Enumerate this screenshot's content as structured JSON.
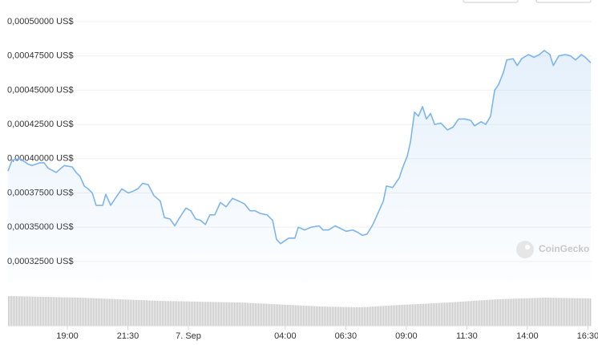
{
  "chart_data": {
    "type": "area",
    "brand": "CoinGecko",
    "color": "#7cb5ec",
    "grid": true,
    "xlim": [
      -7.45,
      16.62
    ],
    "xticks": [
      {
        "value": -5,
        "label": "19:00"
      },
      {
        "value": -2.5,
        "label": "21:30"
      },
      {
        "value": 0,
        "label": "7. Sep"
      },
      {
        "value": 4,
        "label": "04:00"
      },
      {
        "value": 6.5,
        "label": "06:30"
      },
      {
        "value": 9,
        "label": "09:00"
      },
      {
        "value": 11.5,
        "label": "11:30"
      },
      {
        "value": 14,
        "label": "14:00"
      },
      {
        "value": 16.5,
        "label": "16:30"
      }
    ],
    "ylim": [
      0.00031,
      0.0005
    ],
    "yticks": [
      {
        "value": 0.0005,
        "label": "0,00050000 US$"
      },
      {
        "value": 0.000475,
        "label": "0,00047500 US$"
      },
      {
        "value": 0.00045,
        "label": "0,00045000 US$"
      },
      {
        "value": 0.000425,
        "label": "0,00042500 US$"
      },
      {
        "value": 0.0004,
        "label": "0,00040000 US$"
      },
      {
        "value": 0.000375,
        "label": "0,00037500 US$"
      },
      {
        "value": 0.00035,
        "label": "0,00035000 US$"
      },
      {
        "value": 0.000325,
        "label": "0,00032500 US$"
      }
    ],
    "x": [
      -7.45,
      -7.28,
      -6.95,
      -6.62,
      -6.46,
      -6.13,
      -5.96,
      -5.79,
      -5.46,
      -5.13,
      -4.8,
      -4.64,
      -4.47,
      -4.3,
      -4.14,
      -3.97,
      -3.81,
      -3.54,
      -3.41,
      -3.21,
      -2.98,
      -2.75,
      -2.48,
      -2.32,
      -2.09,
      -1.89,
      -1.66,
      -1.42,
      -1.16,
      -0.99,
      -0.76,
      -0.56,
      -0.36,
      -0.1,
      0.1,
      0.3,
      0.5,
      0.7,
      0.89,
      1.09,
      1.32,
      1.56,
      1.82,
      2.09,
      2.32,
      2.55,
      2.75,
      2.98,
      3.25,
      3.48,
      3.64,
      3.81,
      3.97,
      4.14,
      4.4,
      4.54,
      4.8,
      5.07,
      5.4,
      5.56,
      5.79,
      6.06,
      6.29,
      6.52,
      6.79,
      7.02,
      7.19,
      7.38,
      7.62,
      7.85,
      8.05,
      8.18,
      8.44,
      8.71,
      8.84,
      9.04,
      9.17,
      9.34,
      9.5,
      9.67,
      9.83,
      10,
      10.17,
      10.43,
      10.7,
      10.93,
      11.16,
      11.42,
      11.66,
      11.82,
      12.09,
      12.28,
      12.48,
      12.65,
      12.81,
      13.01,
      13.15,
      13.41,
      13.58,
      13.77,
      14.04,
      14.27,
      14.5,
      14.7,
      14.93,
      15.07,
      15.3,
      15.56,
      15.79,
      15.99,
      16.23,
      16.39,
      16.62
    ],
    "values": [
      0.000391,
      0.000399,
      0.0004,
      0.000396,
      0.000395,
      0.000397,
      0.000397,
      0.000393,
      0.00039,
      0.000395,
      0.000394,
      0.00039,
      0.000387,
      0.00038,
      0.000378,
      0.000375,
      0.000366,
      0.000366,
      0.000374,
      0.000366,
      0.000372,
      0.000378,
      0.000375,
      0.000376,
      0.000378,
      0.000382,
      0.000381,
      0.000373,
      0.000369,
      0.000357,
      0.000356,
      0.000351,
      0.000357,
      0.000364,
      0.000362,
      0.000356,
      0.000355,
      0.000352,
      0.000359,
      0.000359,
      0.000368,
      0.000365,
      0.000371,
      0.000369,
      0.000367,
      0.000362,
      0.000362,
      0.00036,
      0.000359,
      0.000355,
      0.000341,
      0.000338,
      0.00034,
      0.000342,
      0.000342,
      0.00035,
      0.000348,
      0.00035,
      0.000351,
      0.000348,
      0.000348,
      0.000351,
      0.000349,
      0.000347,
      0.000348,
      0.000346,
      0.000344,
      0.000345,
      0.000352,
      0.000361,
      0.000369,
      0.00038,
      0.000379,
      0.000386,
      0.000393,
      0.000402,
      0.000412,
      0.000434,
      0.000431,
      0.000438,
      0.000429,
      0.000433,
      0.000425,
      0.000426,
      0.000421,
      0.000423,
      0.000429,
      0.000429,
      0.000428,
      0.000424,
      0.000427,
      0.000425,
      0.000431,
      0.00045,
      0.000454,
      0.000463,
      0.000472,
      0.000473,
      0.000468,
      0.000473,
      0.000476,
      0.000474,
      0.000476,
      0.000479,
      0.000476,
      0.000468,
      0.000475,
      0.000476,
      0.000475,
      0.000472,
      0.000476,
      0.000474,
      0.00047
    ]
  }
}
